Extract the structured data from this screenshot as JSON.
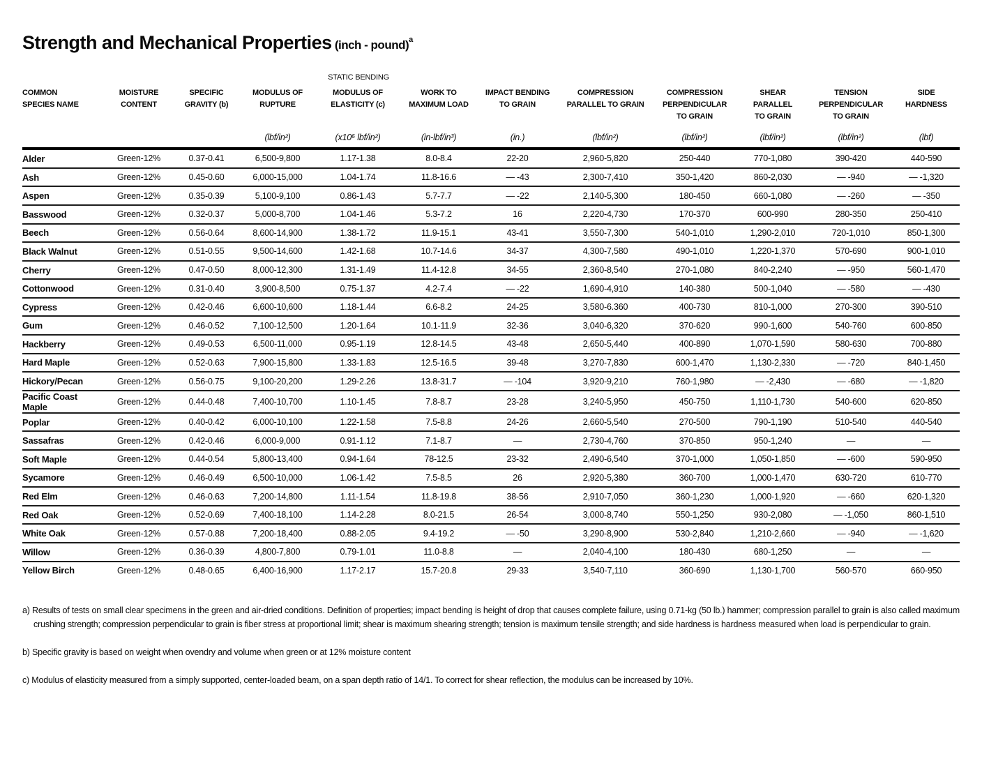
{
  "title": {
    "main": "Strength and Mechanical Properties",
    "suffix": " (inch - pound)",
    "superscript": "a"
  },
  "table": {
    "group_header": "STATIC BENDING",
    "columns": [
      {
        "label": "COMMON\nSPECIES NAME",
        "unit": ""
      },
      {
        "label": "MOISTURE\nCONTENT",
        "unit": ""
      },
      {
        "label": "SPECIFIC\nGRAVITY (b)",
        "unit": ""
      },
      {
        "label": "MODULUS OF\nRUPTURE",
        "unit": "(lbf/in²)"
      },
      {
        "label": "MODULUS OF\nELASTICITY (c)",
        "unit": "(x10⁶ lbf/in²)"
      },
      {
        "label": "WORK TO\nMAXIMUM LOAD",
        "unit": "(in-lbf/in³)"
      },
      {
        "label": "IMPACT BENDING\nTO GRAIN",
        "unit": "(in.)"
      },
      {
        "label": "COMPRESSION\nPARALLEL TO GRAIN",
        "unit": "(lbf/in²)"
      },
      {
        "label": "COMPRESSION\nPERPENDICULAR\nTO GRAIN",
        "unit": "(lbf/in²)"
      },
      {
        "label": "SHEAR\nPARALLEL\nTO GRAIN",
        "unit": "(lbf/in²)"
      },
      {
        "label": "TENSION\nPERPENDICULAR\nTO GRAIN",
        "unit": "(lbf/in²)"
      },
      {
        "label": "SIDE\nHARDNESS",
        "unit": "(lbf)"
      }
    ],
    "rows": [
      {
        "species": "Alder",
        "values": [
          "Green-12%",
          "0.37-0.41",
          "6,500-9,800",
          "1.17-1.38",
          "8.0-8.4",
          "22-20",
          "2,960-5,820",
          "250-440",
          "770-1,080",
          "390-420",
          "440-590"
        ]
      },
      {
        "species": "Ash",
        "values": [
          "Green-12%",
          "0.45-0.60",
          "6,000-15,000",
          "1.04-1.74",
          "11.8-16.6",
          "— -43",
          "2,300-7,410",
          "350-1,420",
          "860-2,030",
          "— -940",
          "— -1,320"
        ]
      },
      {
        "species": "Aspen",
        "values": [
          "Green-12%",
          "0.35-0.39",
          "5,100-9,100",
          "0.86-1.43",
          "5.7-7.7",
          "— -22",
          "2,140-5,300",
          "180-450",
          "660-1,080",
          "— -260",
          "— -350"
        ]
      },
      {
        "species": "Basswood",
        "values": [
          "Green-12%",
          "0.32-0.37",
          "5,000-8,700",
          "1.04-1.46",
          "5.3-7.2",
          "16",
          "2,220-4,730",
          "170-370",
          "600-990",
          "280-350",
          "250-410"
        ]
      },
      {
        "species": "Beech",
        "values": [
          "Green-12%",
          "0.56-0.64",
          "8,600-14,900",
          "1.38-1.72",
          "11.9-15.1",
          "43-41",
          "3,550-7,300",
          "540-1,010",
          "1,290-2,010",
          "720-1,010",
          "850-1,300"
        ]
      },
      {
        "species": "Black Walnut",
        "values": [
          "Green-12%",
          "0.51-0.55",
          "9,500-14,600",
          "1.42-1.68",
          "10.7-14.6",
          "34-37",
          "4,300-7,580",
          "490-1,010",
          "1,220-1,370",
          "570-690",
          "900-1,010"
        ]
      },
      {
        "species": "Cherry",
        "values": [
          "Green-12%",
          "0.47-0.50",
          "8,000-12,300",
          "1.31-1.49",
          "11.4-12.8",
          "34-55",
          "2,360-8,540",
          "270-1,080",
          "840-2,240",
          "— -950",
          "560-1,470"
        ]
      },
      {
        "species": "Cottonwood",
        "values": [
          "Green-12%",
          "0.31-0.40",
          "3,900-8,500",
          "0.75-1.37",
          "4.2-7.4",
          "— -22",
          "1,690-4,910",
          "140-380",
          "500-1,040",
          "— -580",
          "— -430"
        ]
      },
      {
        "species": "Cypress",
        "values": [
          "Green-12%",
          "0.42-0.46",
          "6,600-10,600",
          "1.18-1.44",
          "6.6-8.2",
          "24-25",
          "3,580-6.360",
          "400-730",
          "810-1,000",
          "270-300",
          "390-510"
        ]
      },
      {
        "species": "Gum",
        "values": [
          "Green-12%",
          "0.46-0.52",
          "7,100-12,500",
          "1.20-1.64",
          "10.1-11.9",
          "32-36",
          "3,040-6,320",
          "370-620",
          "990-1,600",
          "540-760",
          "600-850"
        ]
      },
      {
        "species": "Hackberry",
        "values": [
          "Green-12%",
          "0.49-0.53",
          "6,500-11,000",
          "0.95-1.19",
          "12.8-14.5",
          "43-48",
          "2,650-5,440",
          "400-890",
          "1,070-1,590",
          "580-630",
          "700-880"
        ]
      },
      {
        "species": "Hard Maple",
        "values": [
          "Green-12%",
          "0.52-0.63",
          "7,900-15,800",
          "1.33-1.83",
          "12.5-16.5",
          "39-48",
          "3,270-7,830",
          "600-1,470",
          "1,130-2,330",
          "— -720",
          "840-1,450"
        ]
      },
      {
        "species": "Hickory/Pecan",
        "values": [
          "Green-12%",
          "0.56-0.75",
          "9,100-20,200",
          "1.29-2.26",
          "13.8-31.7",
          "— -104",
          "3,920-9,210",
          "760-1,980",
          "— -2,430",
          "— -680",
          "— -1,820"
        ]
      },
      {
        "species": "Pacific Coast Maple",
        "values": [
          "Green-12%",
          "0.44-0.48",
          "7,400-10,700",
          "1.10-1.45",
          "7.8-8.7",
          "23-28",
          "3,240-5,950",
          "450-750",
          "1,110-1,730",
          "540-600",
          "620-850"
        ]
      },
      {
        "species": "Poplar",
        "values": [
          "Green-12%",
          "0.40-0.42",
          "6,000-10,100",
          "1.22-1.58",
          "7.5-8.8",
          "24-26",
          "2,660-5,540",
          "270-500",
          "790-1,190",
          "510-540",
          "440-540"
        ]
      },
      {
        "species": "Sassafras",
        "values": [
          "Green-12%",
          "0.42-0.46",
          "6,000-9,000",
          "0.91-1.12",
          "7.1-8.7",
          "—",
          "2,730-4,760",
          "370-850",
          "950-1,240",
          "—",
          "—"
        ]
      },
      {
        "species": "Soft Maple",
        "values": [
          "Green-12%",
          "0.44-0.54",
          "5,800-13,400",
          "0.94-1.64",
          "78-12.5",
          "23-32",
          "2,490-6,540",
          "370-1,000",
          "1,050-1,850",
          "— -600",
          "590-950"
        ]
      },
      {
        "species": "Sycamore",
        "values": [
          "Green-12%",
          "0.46-0.49",
          "6,500-10,000",
          "1.06-1.42",
          "7.5-8.5",
          "26",
          "2,920-5,380",
          "360-700",
          "1,000-1,470",
          "630-720",
          "610-770"
        ]
      },
      {
        "species": "Red Elm",
        "values": [
          "Green-12%",
          "0.46-0.63",
          "7,200-14,800",
          "1.11-1.54",
          "11.8-19.8",
          "38-56",
          "2,910-7,050",
          "360-1,230",
          "1,000-1,920",
          "— -660",
          "620-1,320"
        ]
      },
      {
        "species": "Red Oak",
        "values": [
          "Green-12%",
          "0.52-0.69",
          "7,400-18,100",
          "1.14-2.28",
          "8.0-21.5",
          "26-54",
          "3,000-8,740",
          "550-1,250",
          "930-2,080",
          "— -1,050",
          "860-1,510"
        ]
      },
      {
        "species": "White Oak",
        "values": [
          "Green-12%",
          "0.57-0.88",
          "7,200-18,400",
          "0.88-2.05",
          "9.4-19.2",
          "— -50",
          "3,290-8,900",
          "530-2,840",
          "1,210-2,660",
          "— -940",
          "— -1,620"
        ]
      },
      {
        "species": "Willow",
        "values": [
          "Green-12%",
          "0.36-0.39",
          "4,800-7,800",
          "0.79-1.01",
          "11.0-8.8",
          "—",
          "2,040-4,100",
          "180-430",
          "680-1,250",
          "—",
          "—"
        ]
      },
      {
        "species": "Yellow Birch",
        "values": [
          "Green-12%",
          "0.48-0.65",
          "6,400-16,900",
          "1.17-2.17",
          "15.7-20.8",
          "29-33",
          "3,540-7,110",
          "360-690",
          "1,130-1,700",
          "560-570",
          "660-950"
        ]
      }
    ]
  },
  "footnotes": [
    "a) Results of tests on small clear specimens in the green and air-dried conditions. Definition of properties; impact bending is height of drop that causes complete failure, using 0.71-kg (50 lb.) hammer; compression parallel to grain is also called maximum crushing strength; compression perpendicular to grain is fiber stress at proportional limit; shear is maximum shearing strength; tension is maximum tensile strength; and side hardness is hardness measured when load is perpendicular to grain.",
    "b) Specific gravity is based on weight when ovendry and volume when green or at 12% moisture content",
    "c) Modulus of elasticity measured from a simply supported, center-loaded beam, on a span depth ratio of 14/1. To correct for shear reflection, the modulus can be increased by 10%."
  ]
}
